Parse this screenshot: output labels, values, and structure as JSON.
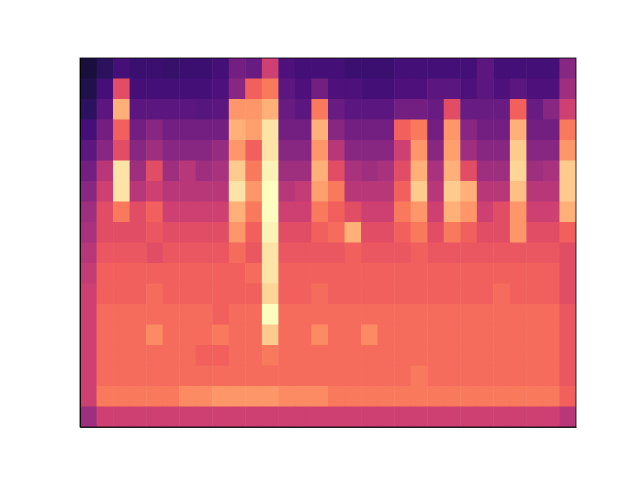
{
  "chart_data": {
    "type": "heatmap",
    "color": "magma",
    "tick_labels": false,
    "color_range": [
      0,
      0.9
    ],
    "cells": [
      [
        0.1,
        0.15,
        0.2,
        0.18,
        0.18,
        0.17,
        0.18,
        0.18,
        0.2,
        0.3,
        0.28,
        0.5,
        0.22,
        0.2,
        0.2,
        0.2,
        0.18,
        0.18,
        0.18,
        0.2,
        0.2,
        0.2,
        0.2,
        0.2,
        0.25,
        0.2,
        0.2,
        0.2,
        0.2,
        0.35
      ],
      [
        0.12,
        0.2,
        0.55,
        0.2,
        0.2,
        0.2,
        0.2,
        0.2,
        0.22,
        0.35,
        0.6,
        0.65,
        0.25,
        0.22,
        0.3,
        0.22,
        0.22,
        0.2,
        0.2,
        0.22,
        0.22,
        0.25,
        0.25,
        0.22,
        0.25,
        0.22,
        0.25,
        0.22,
        0.22,
        0.4
      ],
      [
        0.15,
        0.25,
        0.75,
        0.25,
        0.25,
        0.25,
        0.25,
        0.24,
        0.25,
        0.7,
        0.7,
        0.75,
        0.28,
        0.25,
        0.65,
        0.28,
        0.25,
        0.25,
        0.25,
        0.3,
        0.3,
        0.28,
        0.55,
        0.28,
        0.28,
        0.28,
        0.6,
        0.28,
        0.35,
        0.5
      ],
      [
        0.2,
        0.3,
        0.6,
        0.3,
        0.35,
        0.3,
        0.3,
        0.3,
        0.3,
        0.75,
        0.72,
        0.85,
        0.3,
        0.3,
        0.75,
        0.35,
        0.3,
        0.3,
        0.3,
        0.6,
        0.65,
        0.3,
        0.7,
        0.35,
        0.3,
        0.3,
        0.75,
        0.3,
        0.3,
        0.65
      ],
      [
        0.25,
        0.35,
        0.55,
        0.35,
        0.4,
        0.35,
        0.35,
        0.35,
        0.38,
        0.7,
        0.6,
        0.85,
        0.35,
        0.35,
        0.7,
        0.45,
        0.35,
        0.35,
        0.35,
        0.5,
        0.7,
        0.35,
        0.72,
        0.4,
        0.35,
        0.35,
        0.8,
        0.35,
        0.35,
        0.7
      ],
      [
        0.3,
        0.45,
        0.85,
        0.4,
        0.55,
        0.4,
        0.45,
        0.4,
        0.42,
        0.8,
        0.65,
        0.88,
        0.4,
        0.4,
        0.75,
        0.55,
        0.42,
        0.4,
        0.42,
        0.55,
        0.75,
        0.42,
        0.75,
        0.55,
        0.4,
        0.4,
        0.82,
        0.4,
        0.42,
        0.8
      ],
      [
        0.35,
        0.5,
        0.85,
        0.45,
        0.5,
        0.45,
        0.45,
        0.45,
        0.45,
        0.85,
        0.7,
        0.9,
        0.45,
        0.48,
        0.72,
        0.65,
        0.45,
        0.45,
        0.45,
        0.6,
        0.8,
        0.45,
        0.8,
        0.75,
        0.45,
        0.45,
        0.78,
        0.45,
        0.45,
        0.8
      ],
      [
        0.4,
        0.55,
        0.65,
        0.55,
        0.6,
        0.5,
        0.5,
        0.5,
        0.5,
        0.75,
        0.65,
        0.9,
        0.5,
        0.5,
        0.65,
        0.6,
        0.55,
        0.5,
        0.5,
        0.65,
        0.7,
        0.5,
        0.75,
        0.7,
        0.5,
        0.55,
        0.7,
        0.5,
        0.5,
        0.75
      ],
      [
        0.42,
        0.55,
        0.55,
        0.55,
        0.58,
        0.55,
        0.55,
        0.55,
        0.55,
        0.7,
        0.6,
        0.88,
        0.55,
        0.55,
        0.6,
        0.62,
        0.75,
        0.55,
        0.55,
        0.6,
        0.65,
        0.55,
        0.65,
        0.6,
        0.55,
        0.55,
        0.7,
        0.55,
        0.55,
        0.6
      ],
      [
        0.45,
        0.58,
        0.58,
        0.58,
        0.55,
        0.58,
        0.58,
        0.58,
        0.58,
        0.62,
        0.58,
        0.85,
        0.58,
        0.58,
        0.58,
        0.58,
        0.6,
        0.58,
        0.58,
        0.58,
        0.6,
        0.58,
        0.58,
        0.58,
        0.58,
        0.58,
        0.58,
        0.58,
        0.58,
        0.55
      ],
      [
        0.48,
        0.6,
        0.6,
        0.6,
        0.6,
        0.6,
        0.6,
        0.6,
        0.6,
        0.6,
        0.62,
        0.85,
        0.6,
        0.6,
        0.6,
        0.6,
        0.6,
        0.6,
        0.6,
        0.6,
        0.6,
        0.6,
        0.6,
        0.6,
        0.6,
        0.6,
        0.6,
        0.6,
        0.6,
        0.55
      ],
      [
        0.5,
        0.6,
        0.6,
        0.6,
        0.62,
        0.6,
        0.6,
        0.6,
        0.6,
        0.6,
        0.6,
        0.82,
        0.6,
        0.6,
        0.62,
        0.6,
        0.6,
        0.6,
        0.6,
        0.6,
        0.6,
        0.6,
        0.6,
        0.6,
        0.6,
        0.62,
        0.6,
        0.6,
        0.6,
        0.55
      ],
      [
        0.5,
        0.62,
        0.62,
        0.62,
        0.62,
        0.62,
        0.62,
        0.62,
        0.6,
        0.62,
        0.62,
        0.9,
        0.62,
        0.62,
        0.62,
        0.62,
        0.62,
        0.62,
        0.62,
        0.62,
        0.62,
        0.62,
        0.62,
        0.62,
        0.62,
        0.62,
        0.62,
        0.62,
        0.62,
        0.58
      ],
      [
        0.5,
        0.62,
        0.62,
        0.62,
        0.68,
        0.62,
        0.62,
        0.62,
        0.65,
        0.62,
        0.62,
        0.8,
        0.62,
        0.62,
        0.68,
        0.62,
        0.62,
        0.68,
        0.62,
        0.62,
        0.62,
        0.62,
        0.62,
        0.62,
        0.62,
        0.62,
        0.62,
        0.62,
        0.62,
        0.58
      ],
      [
        0.5,
        0.62,
        0.62,
        0.62,
        0.62,
        0.62,
        0.62,
        0.6,
        0.6,
        0.62,
        0.62,
        0.65,
        0.62,
        0.62,
        0.62,
        0.62,
        0.62,
        0.62,
        0.62,
        0.62,
        0.62,
        0.62,
        0.62,
        0.62,
        0.62,
        0.62,
        0.62,
        0.62,
        0.62,
        0.58
      ],
      [
        0.5,
        0.62,
        0.62,
        0.62,
        0.62,
        0.62,
        0.62,
        0.62,
        0.62,
        0.62,
        0.62,
        0.62,
        0.62,
        0.62,
        0.62,
        0.62,
        0.62,
        0.62,
        0.62,
        0.62,
        0.65,
        0.62,
        0.62,
        0.62,
        0.62,
        0.62,
        0.62,
        0.62,
        0.62,
        0.58
      ],
      [
        0.5,
        0.65,
        0.65,
        0.65,
        0.65,
        0.65,
        0.68,
        0.68,
        0.7,
        0.7,
        0.7,
        0.7,
        0.68,
        0.68,
        0.68,
        0.65,
        0.65,
        0.65,
        0.65,
        0.65,
        0.65,
        0.65,
        0.65,
        0.65,
        0.65,
        0.65,
        0.65,
        0.65,
        0.65,
        0.6
      ],
      [
        0.4,
        0.5,
        0.5,
        0.5,
        0.5,
        0.5,
        0.5,
        0.5,
        0.5,
        0.5,
        0.5,
        0.5,
        0.5,
        0.5,
        0.5,
        0.5,
        0.5,
        0.5,
        0.5,
        0.5,
        0.5,
        0.5,
        0.5,
        0.5,
        0.5,
        0.5,
        0.5,
        0.5,
        0.5,
        0.45
      ]
    ]
  }
}
